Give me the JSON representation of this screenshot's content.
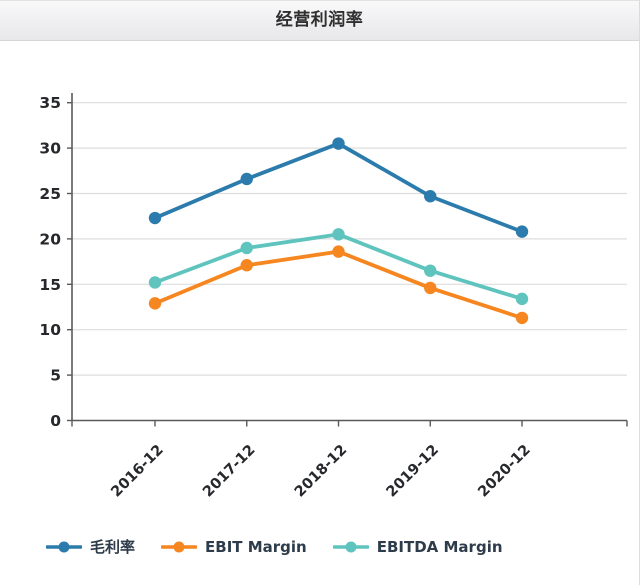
{
  "header": {
    "title": "经营利润率"
  },
  "colors": {
    "gross_margin": "#2b7cac",
    "ebit_margin": "#f6861f",
    "ebitda_margin": "#5fc4be",
    "gridline": "#dddddd",
    "axis": "#58595b",
    "tick_label": "#26282b"
  },
  "chart_data": {
    "type": "line",
    "title": "经营利润率",
    "categories": [
      "2016-12",
      "2017-12",
      "2018-12",
      "2019-12",
      "2020-12"
    ],
    "series": [
      {
        "name": "毛利率",
        "color": "#2b7cac",
        "values": [
          22.3,
          26.6,
          30.5,
          24.7,
          20.8
        ]
      },
      {
        "name": "EBIT Margin",
        "color": "#f6861f",
        "values": [
          12.9,
          17.1,
          18.6,
          14.6,
          11.3
        ]
      },
      {
        "name": "EBITDA Margin",
        "color": "#5fc4be",
        "values": [
          15.2,
          19.0,
          20.5,
          16.5,
          13.4
        ]
      }
    ],
    "xlabel": "",
    "ylabel": "",
    "ylim": [
      0,
      35
    ],
    "yticks": [
      0,
      5,
      10,
      15,
      20,
      25,
      30,
      35
    ],
    "grid": true,
    "legend_position": "bottom"
  }
}
